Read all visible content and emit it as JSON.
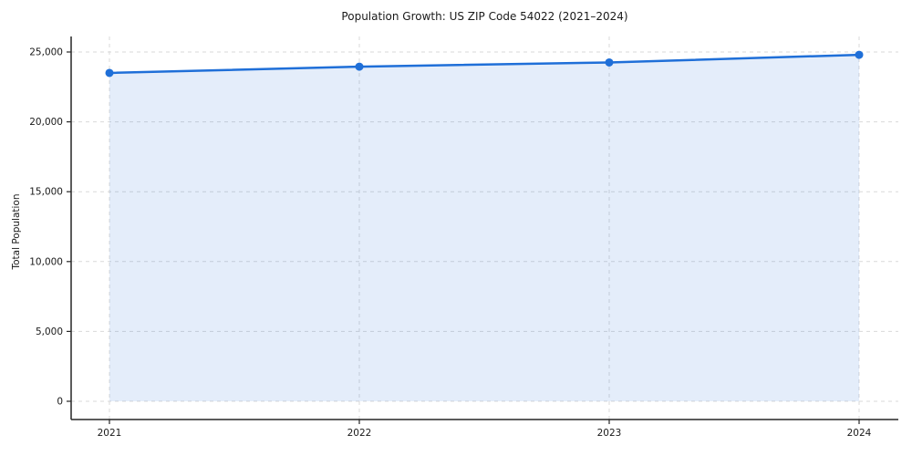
{
  "chart_data": {
    "type": "line",
    "title": "Population Growth: US ZIP Code 54022 (2021–2024)",
    "xlabel": "",
    "ylabel": "Total Population",
    "x": [
      "2021",
      "2022",
      "2023",
      "2024"
    ],
    "series": [
      {
        "name": "Total Population",
        "values": [
          23500,
          23950,
          24250,
          24800
        ]
      }
    ],
    "ylim": [
      0,
      25000
    ],
    "y_ticks": [
      0,
      5000,
      10000,
      15000,
      20000,
      25000
    ],
    "y_tick_labels": [
      "0",
      "5,000",
      "10,000",
      "15,000",
      "20,000",
      "25,000"
    ],
    "grid": true,
    "grid_style": "dashed",
    "legend": "none",
    "line_color": "#1f6fd8",
    "marker_color": "#1f6fd8",
    "fill_color": "rgba(31, 111, 216, 0.12)",
    "axis_color": "#262626",
    "grid_color": "#d9d9d9"
  }
}
